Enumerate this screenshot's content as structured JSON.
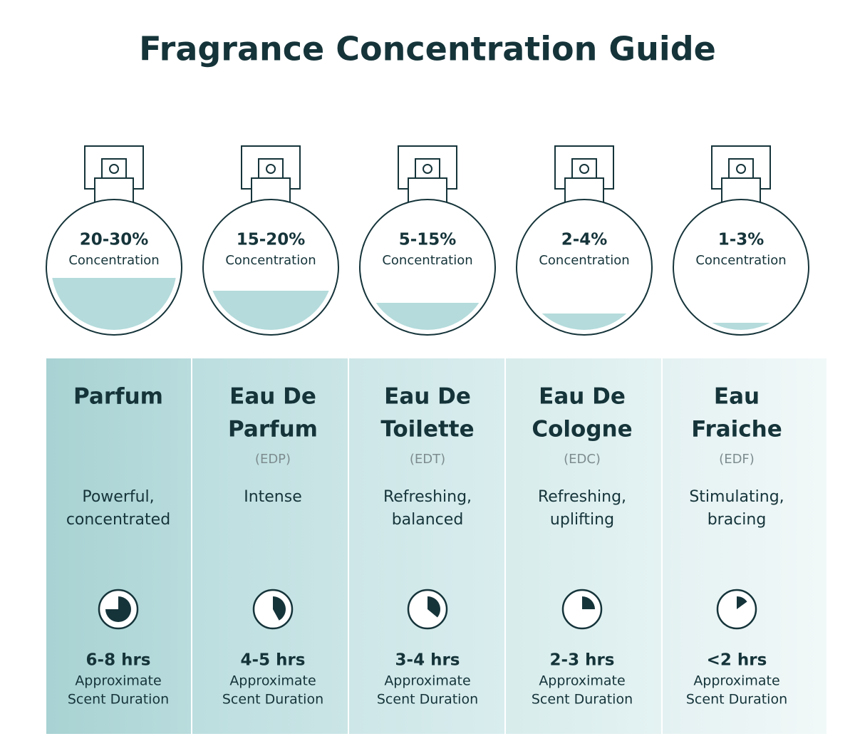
{
  "title": "Fragrance Concentration Guide",
  "columns": [
    {
      "concentration": "20-30%",
      "concentration_label": "Concentration",
      "name": [
        "Parfum"
      ],
      "description": [
        "Powerful,",
        "concentrated"
      ],
      "duration": "6-8 hrs",
      "duration_label": [
        "Approximate",
        "Scent Duration"
      ]
    },
    {
      "concentration": "15-20%",
      "concentration_label": "Concentration",
      "name": [
        "Eau De",
        "Parfum"
      ],
      "abbreviation": "(EDP)",
      "description": [
        "Intense"
      ],
      "duration": "4-5 hrs",
      "duration_label": [
        "Approximate",
        "Scent Duration"
      ]
    },
    {
      "concentration": "5-15%",
      "concentration_label": "Concentration",
      "name": [
        "Eau De",
        "Toilette"
      ],
      "abbreviation": "(EDT)",
      "description": [
        "Refreshing,",
        "balanced"
      ],
      "duration": "3-4 hrs",
      "duration_label": [
        "Approximate",
        "Scent Duration"
      ]
    },
    {
      "concentration": "2-4%",
      "concentration_label": "Concentration",
      "name": [
        "Eau De",
        "Cologne"
      ],
      "abbreviation": "(EDC)",
      "description": [
        "Refreshing,",
        "uplifting"
      ],
      "duration": "2-3 hrs",
      "duration_label": [
        "Approximate",
        "Scent Duration"
      ]
    },
    {
      "concentration": "1-3%",
      "concentration_label": "Concentration",
      "name": [
        "Eau",
        "Fraiche"
      ],
      "abbreviation": "(EDF)",
      "description": [
        "Stimulating,",
        "bracing"
      ],
      "duration": "<2 hrs",
      "duration_label": [
        "Approximate",
        "Scent Duration"
      ]
    }
  ]
}
